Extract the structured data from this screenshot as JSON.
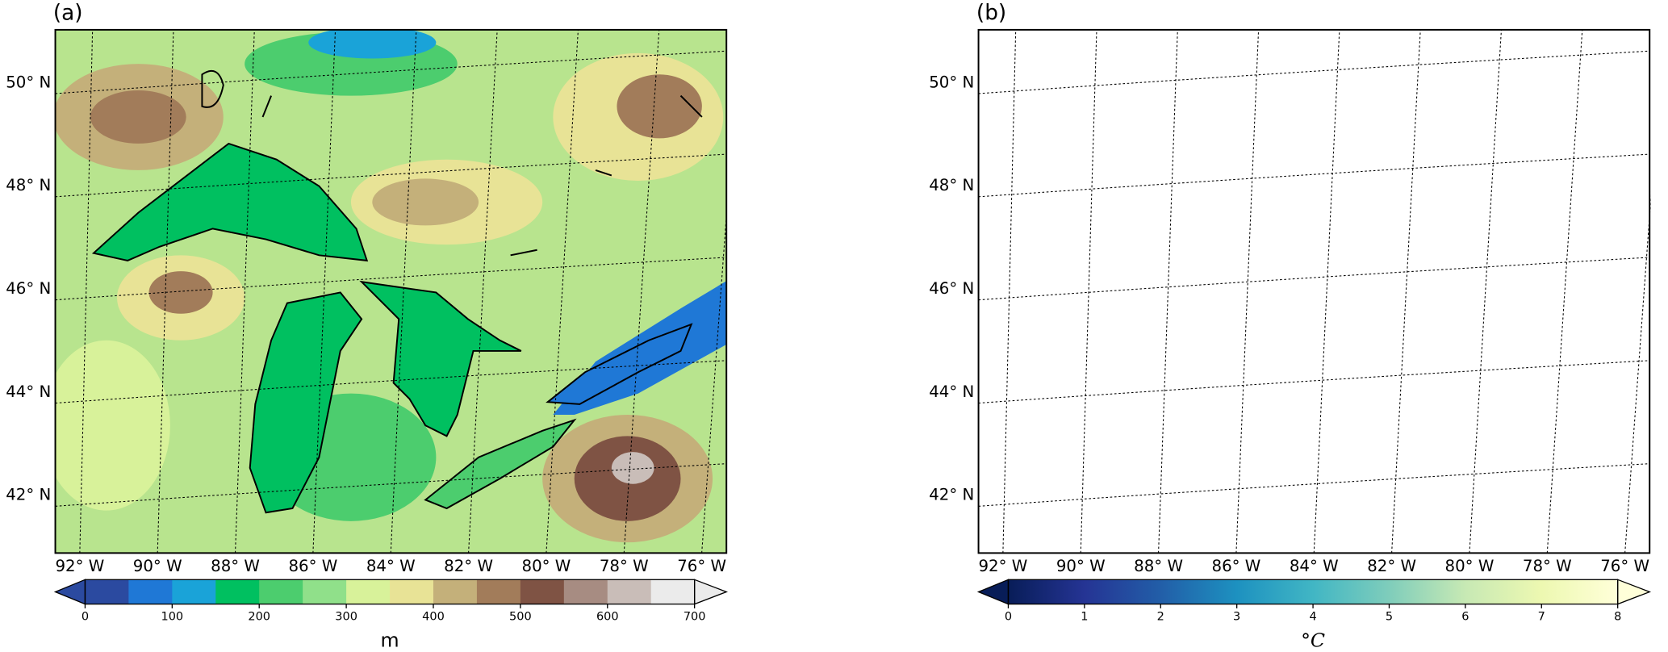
{
  "panels": [
    {
      "label": "(a)",
      "lat_labels": [
        "50° N",
        "48° N",
        "46° N",
        "44° N",
        "42° N"
      ],
      "lon_labels": [
        "92° W",
        "90° W",
        "88° W",
        "86° W",
        "84° W",
        "82° W",
        "80° W",
        "78° W",
        "76° W"
      ],
      "colorbar": {
        "style": "discrete",
        "lim": [
          0,
          700
        ],
        "ticks": [
          0,
          100,
          200,
          300,
          400,
          500,
          600,
          700
        ],
        "unit": "m",
        "colors": [
          "#2b4aa0",
          "#1f78d6",
          "#1aa3d8",
          "#00c060",
          "#4ccd6e",
          "#90e08a",
          "#d8f29a",
          "#e8e396",
          "#c4b07a",
          "#a27c5a",
          "#7f5344",
          "#a78c82",
          "#c9bdb8",
          "#ebebeb"
        ]
      }
    },
    {
      "label": "(b)",
      "lat_labels": [
        "50° N",
        "48° N",
        "46° N",
        "44° N",
        "42° N"
      ],
      "lon_labels": [
        "92° W",
        "90° W",
        "88° W",
        "86° W",
        "84° W",
        "82° W",
        "80° W",
        "78° W",
        "76° W"
      ],
      "colorbar": {
        "style": "continuous",
        "lim": [
          0,
          8
        ],
        "ticks": [
          0,
          1,
          2,
          3,
          4,
          5,
          6,
          7,
          8
        ],
        "unit": "°C",
        "colors": [
          "#081d58",
          "#253494",
          "#225ea8",
          "#1d91c0",
          "#41b6c4",
          "#7fcdbb",
          "#c7e9b4",
          "#edf8b1",
          "#ffffd9"
        ]
      }
    }
  ]
}
